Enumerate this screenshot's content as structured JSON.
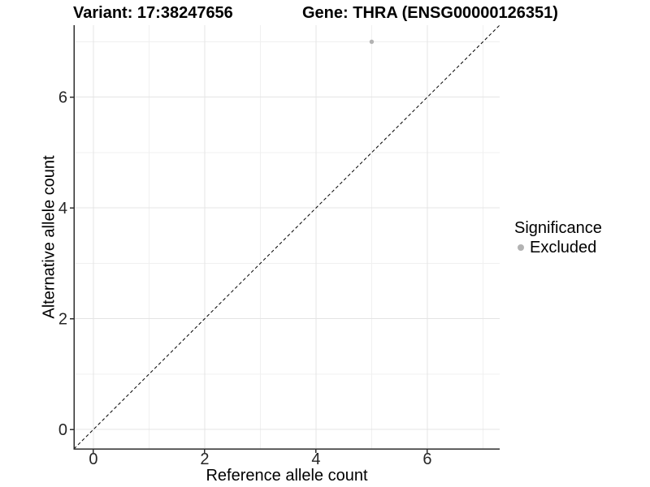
{
  "chart_data": {
    "type": "scatter",
    "title_left": "Variant: 17:38247656",
    "title_right": "Gene: THRA (ENSG00000126351)",
    "xlabel": "Reference allele count",
    "ylabel": "Alternative allele count",
    "xlim": [
      -0.35,
      7.3
    ],
    "ylim": [
      -0.35,
      7.3
    ],
    "xticks": [
      0,
      2,
      4,
      6
    ],
    "yticks": [
      0,
      2,
      4,
      6
    ],
    "xticks_minor": [
      1,
      3,
      5,
      7
    ],
    "yticks_minor": [
      1,
      3,
      5,
      7
    ],
    "grid": "major and minor gridlines on white background",
    "identity_line": {
      "equation": "y = x",
      "style": "dashed",
      "color": "#000000"
    },
    "series": [
      {
        "name": "Excluded",
        "color": "#b3b3b3",
        "points": [
          {
            "x": 5,
            "y": 7
          }
        ]
      }
    ],
    "legend": {
      "title": "Significance",
      "position": "right",
      "items": [
        {
          "label": "Excluded",
          "color": "#b3b3b3"
        }
      ]
    }
  },
  "colors": {
    "background": "#ffffff",
    "grid_major": "#e4e4e4",
    "grid_minor": "#f0f0f0",
    "axis_line": "#2e2e2e",
    "tick_text": "#262626",
    "point": "#b3b3b3"
  }
}
